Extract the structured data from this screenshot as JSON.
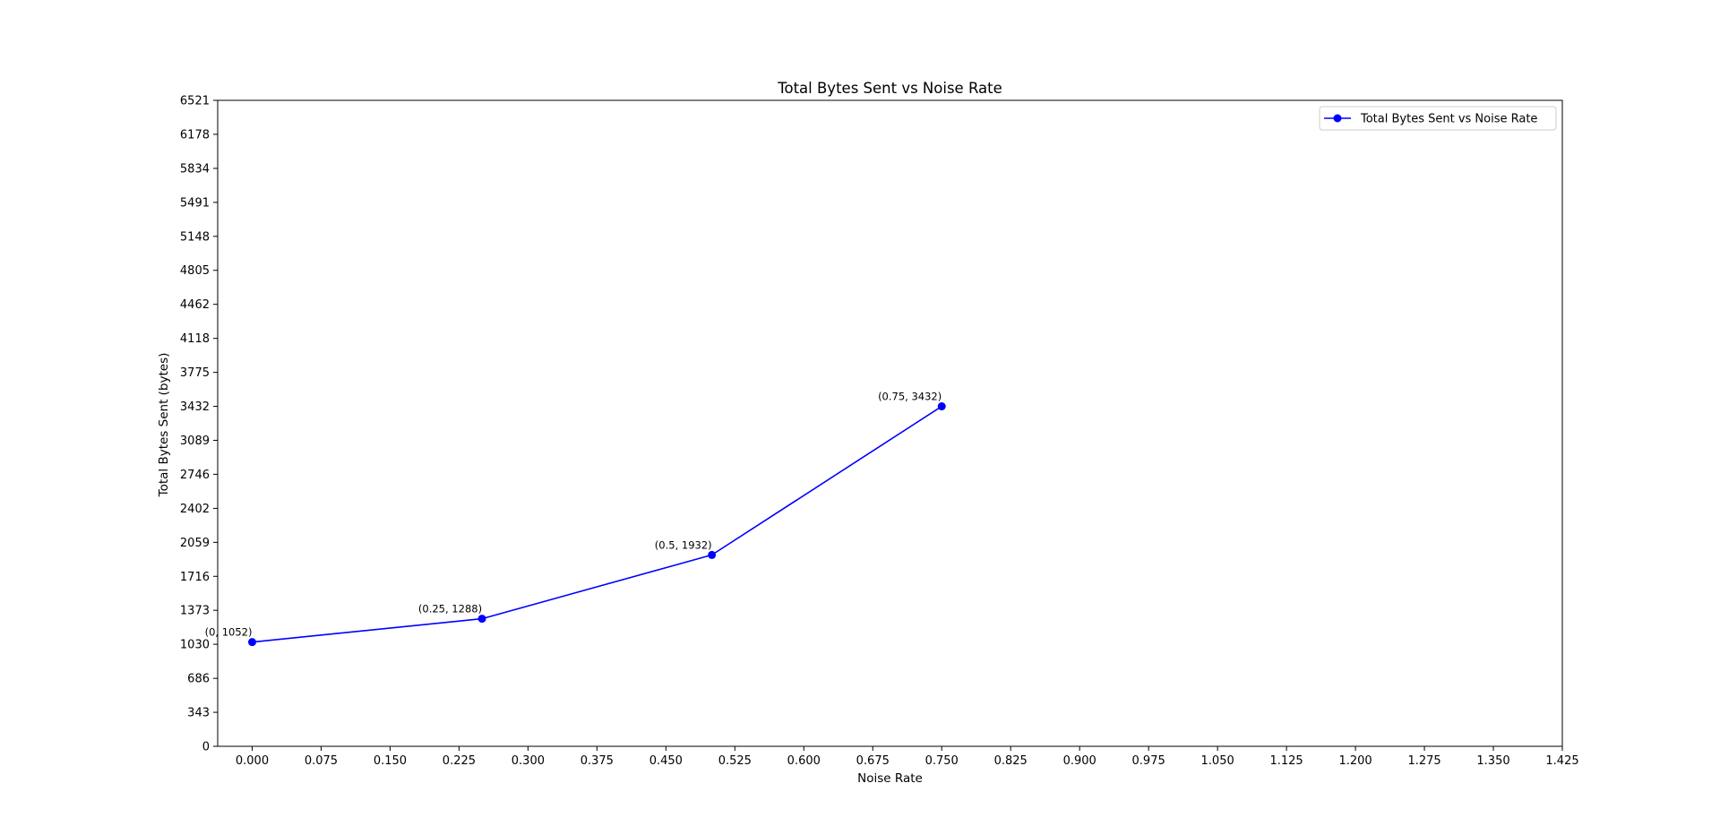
{
  "chart_data": {
    "type": "line",
    "title": "Total Bytes Sent vs Noise Rate",
    "xlabel": "Noise Rate",
    "ylabel": "Total Bytes Sent (bytes)",
    "xlim": [
      -0.0375,
      1.425
    ],
    "ylim": [
      0,
      6521
    ],
    "xticks": [
      0.0,
      0.075,
      0.15,
      0.225,
      0.3,
      0.375,
      0.45,
      0.525,
      0.6,
      0.675,
      0.75,
      0.825,
      0.9,
      0.975,
      1.05,
      1.125,
      1.2,
      1.275,
      1.35,
      1.425
    ],
    "xtick_labels": [
      "0.000",
      "0.075",
      "0.150",
      "0.225",
      "0.300",
      "0.375",
      "0.450",
      "0.525",
      "0.600",
      "0.675",
      "0.750",
      "0.825",
      "0.900",
      "0.975",
      "1.050",
      "1.125",
      "1.200",
      "1.275",
      "1.350",
      "1.425"
    ],
    "yticks": [
      0,
      343,
      686,
      1030,
      1373,
      1716,
      2059,
      2402,
      2746,
      3089,
      3432,
      3775,
      4118,
      4462,
      4805,
      5148,
      5491,
      5834,
      6178,
      6521
    ],
    "ytick_labels": [
      "0",
      "343",
      "686",
      "1030",
      "1373",
      "1716",
      "2059",
      "2402",
      "2746",
      "3089",
      "3432",
      "3775",
      "4118",
      "4462",
      "4805",
      "5148",
      "5491",
      "5834",
      "6178",
      "6521"
    ],
    "grid": false,
    "legend_position": "top-right",
    "series": [
      {
        "name": "Total Bytes Sent vs Noise Rate",
        "color": "#0000ff",
        "marker": "circle",
        "x": [
          0,
          0.25,
          0.5,
          0.75
        ],
        "y": [
          1052,
          1288,
          1932,
          3432
        ],
        "point_labels": [
          "(0, 1052)",
          "(0.25, 1288)",
          "(0.5, 1932)",
          "(0.75, 3432)"
        ]
      }
    ]
  }
}
